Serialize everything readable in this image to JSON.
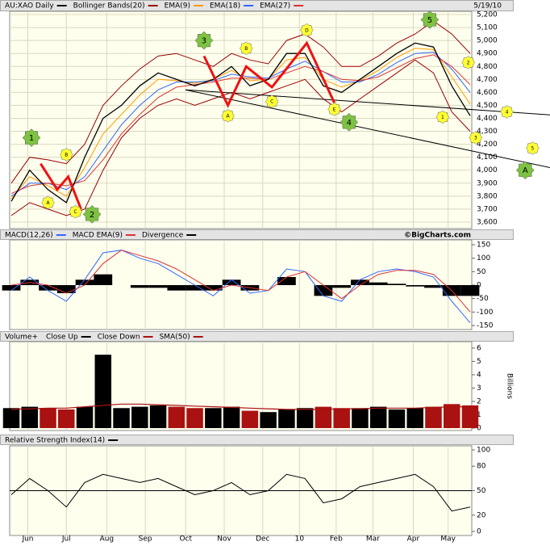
{
  "chart_data": [
    {
      "type": "line",
      "title": "AU:XAO Daily",
      "date": "5/19/10",
      "xlim": [
        0,
        25
      ],
      "xticks": [
        {
          "value": 0.9,
          "label": "Jun"
        },
        {
          "value": 3,
          "label": "Jul"
        },
        {
          "value": 5.2,
          "label": "Aug"
        },
        {
          "value": 7.3,
          "label": "Sep"
        },
        {
          "value": 9.5,
          "label": "Oct"
        },
        {
          "value": 11.6,
          "label": "Nov"
        },
        {
          "value": 13.7,
          "label": "Dec"
        },
        {
          "value": 15.7,
          "label": "10"
        },
        {
          "value": 17.7,
          "label": "Feb"
        },
        {
          "value": 19.7,
          "label": "Mar"
        },
        {
          "value": 21.9,
          "label": "Apr"
        },
        {
          "value": 23.8,
          "label": "May"
        }
      ],
      "ylim": [
        3550,
        5225
      ],
      "yticks": [
        {
          "value": 3600,
          "label": "3,600"
        },
        {
          "value": 3700,
          "label": "3,700"
        },
        {
          "value": 3800,
          "label": "3,800"
        },
        {
          "value": 3900,
          "label": "3,900"
        },
        {
          "value": 4000,
          "label": "4,000"
        },
        {
          "value": 4100,
          "label": "4,100"
        },
        {
          "value": 4200,
          "label": "4,200"
        },
        {
          "value": 4300,
          "label": "4,300"
        },
        {
          "value": 4400,
          "label": "4,400"
        },
        {
          "value": 4500,
          "label": "4,500"
        },
        {
          "value": 4600,
          "label": "4,600"
        },
        {
          "value": 4700,
          "label": "4,700"
        },
        {
          "value": 4800,
          "label": "4,800"
        },
        {
          "value": 4900,
          "label": "4,900"
        },
        {
          "value": 5000,
          "label": "5,000"
        },
        {
          "value": 5100,
          "label": "5,100"
        },
        {
          "value": 5200,
          "label": "5,200"
        }
      ],
      "grid": true,
      "close": {
        "color": "#000000",
        "values": [
          3760,
          4000,
          3850,
          3750,
          4100,
          4400,
          4500,
          4650,
          4750,
          4700,
          4650,
          4700,
          4800,
          4650,
          4700,
          4900,
          4900,
          4650,
          4600,
          4700,
          4800,
          4900,
          4980,
          4950,
          4650,
          4420
        ]
      },
      "bands": {
        "name": "Bollinger Bands(20)",
        "color": "#990000",
        "upper": [
          3900,
          4100,
          4080,
          4050,
          4200,
          4500,
          4650,
          4780,
          4880,
          4900,
          4850,
          4800,
          4900,
          4850,
          4820,
          5000,
          5050,
          4950,
          4800,
          4800,
          4880,
          4980,
          5050,
          5150,
          5050,
          4900
        ],
        "lower": [
          3650,
          3750,
          3700,
          3650,
          3700,
          4000,
          4250,
          4400,
          4500,
          4550,
          4500,
          4550,
          4600,
          4550,
          4600,
          4650,
          4700,
          4550,
          4450,
          4550,
          4650,
          4750,
          4850,
          4750,
          4450,
          4300
        ]
      },
      "series": [
        {
          "name": "EMA(9)",
          "color": "#ff9900",
          "values": [
            3780,
            3950,
            3880,
            3800,
            4020,
            4280,
            4430,
            4580,
            4700,
            4690,
            4670,
            4700,
            4770,
            4690,
            4700,
            4850,
            4870,
            4700,
            4640,
            4690,
            4770,
            4870,
            4940,
            4930,
            4720,
            4510
          ]
        },
        {
          "name": "EMA(18)",
          "color": "#3366ff",
          "values": [
            3800,
            3900,
            3900,
            3850,
            3950,
            4150,
            4350,
            4500,
            4620,
            4680,
            4680,
            4690,
            4740,
            4720,
            4710,
            4780,
            4840,
            4760,
            4680,
            4680,
            4740,
            4830,
            4900,
            4910,
            4780,
            4600
          ]
        },
        {
          "name": "EMA(27)",
          "color": "#dd3333",
          "values": [
            3820,
            3880,
            3900,
            3880,
            3920,
            4080,
            4280,
            4430,
            4560,
            4640,
            4660,
            4680,
            4710,
            4710,
            4700,
            4750,
            4800,
            4760,
            4700,
            4690,
            4720,
            4790,
            4860,
            4890,
            4800,
            4660
          ]
        }
      ],
      "wave_lines": {
        "color": "#ee1111",
        "lines": [
          {
            "x": [
              1.6,
              2.5,
              3.1,
              3.8
            ],
            "y": [
              4050,
              3850,
              3950,
              3700
            ]
          },
          {
            "x": [
              10.5,
              11.8,
              12.8,
              14.2,
              16.1,
              17.6
            ],
            "y": [
              4880,
              4500,
              4800,
              4640,
              4980,
              4520
            ]
          }
        ]
      },
      "trendlines": {
        "color": "#000000",
        "lines": [
          {
            "x": [
              9.5,
              30
            ],
            "y": [
              4620,
              4420
            ]
          },
          {
            "x": [
              9.5,
              30
            ],
            "y": [
              4620,
              4000
            ]
          }
        ]
      },
      "annotations": [
        {
          "label": "1",
          "x": 1.1,
          "y": 4250,
          "color": "#7dc242"
        },
        {
          "label": "2",
          "x": 4.4,
          "y": 3660,
          "color": "#7dc242"
        },
        {
          "label": "3",
          "x": 10.5,
          "y": 5000,
          "color": "#7dc242"
        },
        {
          "label": "4",
          "x": 18.4,
          "y": 4370,
          "color": "#7dc242"
        },
        {
          "label": "5",
          "x": 22.8,
          "y": 5160,
          "color": "#7dc242"
        },
        {
          "label": "A",
          "x": 28,
          "y": 4000,
          "color": "#7dc242"
        },
        {
          "label": "A",
          "x": 2.0,
          "y": 3750,
          "color": "#ffff33"
        },
        {
          "label": "B",
          "x": 3.0,
          "y": 4120,
          "color": "#ffff33"
        },
        {
          "label": "C",
          "x": 3.5,
          "y": 3680,
          "color": "#ffff33"
        },
        {
          "label": "A",
          "x": 11.8,
          "y": 4420,
          "color": "#ffff33"
        },
        {
          "label": "B",
          "x": 12.8,
          "y": 4940,
          "color": "#ffff33"
        },
        {
          "label": "C",
          "x": 14.2,
          "y": 4530,
          "color": "#ffff33"
        },
        {
          "label": "D",
          "x": 16.1,
          "y": 5080,
          "color": "#ffff33"
        },
        {
          "label": "E",
          "x": 17.6,
          "y": 4470,
          "color": "#ffff33"
        },
        {
          "label": "1",
          "x": 23.5,
          "y": 4410,
          "color": "#ffff33"
        },
        {
          "label": "2",
          "x": 24.9,
          "y": 4830,
          "color": "#ffff33"
        },
        {
          "label": "3",
          "x": 25.3,
          "y": 4250,
          "color": "#ffff33"
        },
        {
          "label": "4",
          "x": 27,
          "y": 4450,
          "color": "#ffff33"
        },
        {
          "label": "5",
          "x": 28.4,
          "y": 4170,
          "color": "#ffff33"
        }
      ]
    },
    {
      "type": "line",
      "credit": "©BigCharts.com",
      "ylim": [
        -165,
        168
      ],
      "yticks": [
        -150,
        -100,
        -50,
        0,
        50,
        100,
        150
      ],
      "series": [
        {
          "name": "MACD(12,26)",
          "color": "#3366ff",
          "values": [
            -20,
            30,
            -20,
            -60,
            20,
            120,
            130,
            100,
            80,
            40,
            0,
            -40,
            20,
            -30,
            -20,
            60,
            50,
            -40,
            -60,
            20,
            50,
            60,
            50,
            30,
            -60,
            -140
          ]
        },
        {
          "name": "MACD EMA(9)",
          "color": "#dd3333",
          "values": [
            0,
            10,
            0,
            -30,
            0,
            80,
            130,
            110,
            90,
            60,
            20,
            -20,
            0,
            -10,
            -20,
            30,
            50,
            0,
            -50,
            0,
            40,
            55,
            55,
            40,
            -20,
            -100
          ]
        }
      ],
      "divergence": {
        "name": "Divergence",
        "color": "#000000",
        "values": [
          -20,
          20,
          -20,
          -30,
          20,
          40,
          0,
          -10,
          -10,
          -20,
          -20,
          -20,
          20,
          -20,
          0,
          30,
          0,
          -40,
          -10,
          20,
          10,
          5,
          -5,
          -10,
          -40,
          -40
        ]
      }
    },
    {
      "type": "bar",
      "title": "Volume+",
      "y_axis_label": "Billions",
      "ylim": [
        -0.18,
        6.48
      ],
      "yticks": [
        0,
        1,
        2,
        3,
        4,
        5,
        6
      ],
      "up": {
        "name": "Close Up",
        "color": "#000000"
      },
      "down": {
        "name": "Close Down",
        "color": "#aa1111"
      },
      "values": [
        1.5,
        1.6,
        1.5,
        1.4,
        1.6,
        5.5,
        1.5,
        1.6,
        1.7,
        1.6,
        1.5,
        1.5,
        1.6,
        1.3,
        1.2,
        1.4,
        1.5,
        1.6,
        1.5,
        1.5,
        1.6,
        1.4,
        1.5,
        1.6,
        1.8,
        1.7
      ],
      "sma": {
        "name": "SMA(50)",
        "color": "#aa1111",
        "values": [
          1.4,
          1.45,
          1.5,
          1.5,
          1.6,
          1.7,
          1.8,
          1.8,
          1.75,
          1.7,
          1.65,
          1.6,
          1.55,
          1.5,
          1.45,
          1.4,
          1.4,
          1.4,
          1.45,
          1.45,
          1.5,
          1.5,
          1.5,
          1.55,
          1.6,
          1.6
        ]
      }
    },
    {
      "type": "line",
      "title": "Relative Strength Index(14)",
      "color": "#000000",
      "ylim": [
        -5,
        105
      ],
      "yticks": [
        0,
        20,
        50,
        80,
        100
      ],
      "reference_line": 50,
      "values": [
        45,
        65,
        50,
        30,
        60,
        70,
        65,
        60,
        65,
        55,
        45,
        50,
        60,
        45,
        50,
        70,
        65,
        35,
        40,
        55,
        60,
        65,
        70,
        55,
        25,
        30
      ]
    }
  ]
}
